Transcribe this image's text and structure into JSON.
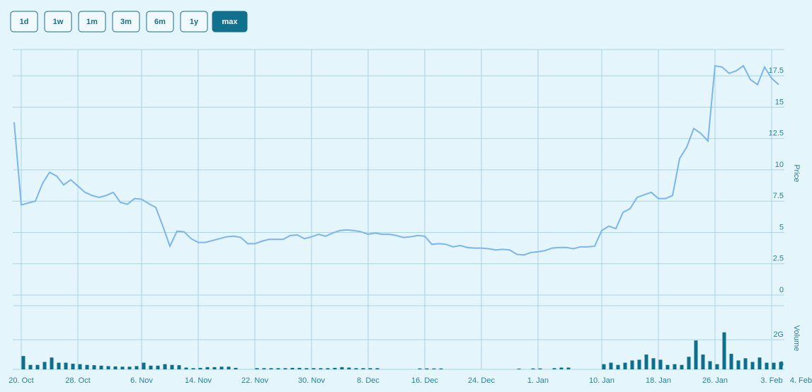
{
  "range_selector": {
    "buttons": [
      "1d",
      "1w",
      "1m",
      "3m",
      "6m",
      "1y",
      "max"
    ],
    "selected": 6
  },
  "chart_data": {
    "type": "line",
    "ylabel": "Price",
    "y2label": "Volume",
    "categories": [
      null,
      "20. Oct",
      null,
      null,
      null,
      null,
      null,
      null,
      null,
      "28. Oct",
      null,
      null,
      null,
      null,
      null,
      null,
      null,
      null,
      "6. Nov",
      null,
      null,
      null,
      null,
      null,
      null,
      null,
      "14. Nov",
      null,
      null,
      null,
      null,
      null,
      null,
      null,
      "22. Nov",
      null,
      null,
      null,
      null,
      null,
      null,
      null,
      "30. Nov",
      null,
      null,
      null,
      null,
      null,
      null,
      null,
      "8. Dec",
      null,
      null,
      null,
      null,
      null,
      null,
      null,
      "16. Dec",
      null,
      null,
      null,
      null,
      null,
      null,
      null,
      "24. Dec",
      null,
      null,
      null,
      null,
      null,
      null,
      null,
      "1. Jan",
      null,
      null,
      null,
      null,
      null,
      null,
      null,
      null,
      "10. Jan",
      null,
      null,
      null,
      null,
      null,
      null,
      null,
      "18. Jan",
      null,
      null,
      null,
      null,
      null,
      null,
      null,
      "26. Jan",
      null,
      null,
      null,
      null,
      null,
      null,
      null,
      "3. Feb",
      "4. Feb"
    ],
    "series": [
      {
        "type": "line",
        "color": "#7cb5ec",
        "values": [
          13.8,
          7.2,
          7.35,
          7.5,
          8.9,
          9.8,
          9.5,
          8.8,
          9.2,
          8.7,
          8.2,
          7.95,
          7.8,
          7.95,
          8.2,
          7.4,
          7.25,
          7.7,
          7.65,
          7.3,
          7.0,
          5.5,
          3.9,
          5.1,
          5.05,
          4.5,
          4.2,
          4.2,
          4.35,
          4.5,
          4.65,
          4.7,
          4.6,
          4.1,
          4.1,
          4.3,
          4.45,
          4.45,
          4.45,
          4.75,
          4.8,
          4.5,
          4.65,
          4.85,
          4.7,
          4.95,
          5.15,
          5.2,
          5.15,
          5.05,
          4.85,
          4.95,
          4.85,
          4.85,
          4.75,
          4.6,
          4.65,
          4.75,
          4.7,
          4.05,
          4.1,
          4.05,
          3.85,
          3.95,
          3.8,
          3.75,
          3.75,
          3.7,
          3.6,
          3.65,
          3.6,
          3.25,
          3.2,
          3.4,
          3.45,
          3.55,
          3.75,
          3.8,
          3.8,
          3.7,
          3.85,
          3.85,
          3.9,
          5.15,
          5.5,
          5.3,
          6.6,
          6.9,
          7.8,
          8.0,
          8.2,
          7.7,
          7.7,
          7.95,
          10.9,
          11.8,
          13.3,
          12.9,
          12.3,
          18.3,
          18.2,
          17.7,
          17.9,
          18.3,
          17.2,
          16.8,
          18.2,
          17.3,
          16.8
        ]
      },
      {
        "type": "bar",
        "axis": "y2",
        "color": "#0f6e8c",
        "values": [
          0,
          900000000.0,
          300000000.0,
          300000000.0,
          500000000.0,
          800000000.0,
          450000000.0,
          450000000.0,
          380000000.0,
          350000000.0,
          300000000.0,
          280000000.0,
          250000000.0,
          220000000.0,
          200000000.0,
          180000000.0,
          180000000.0,
          220000000.0,
          450000000.0,
          250000000.0,
          250000000.0,
          350000000.0,
          300000000.0,
          280000000.0,
          120000000.0,
          80000000.0,
          100000000.0,
          150000000.0,
          150000000.0,
          180000000.0,
          180000000.0,
          100000000.0,
          0,
          0,
          80000000.0,
          80000000.0,
          80000000.0,
          80000000.0,
          80000000.0,
          100000000.0,
          100000000.0,
          80000000.0,
          80000000.0,
          80000000.0,
          80000000.0,
          100000000.0,
          150000000.0,
          120000000.0,
          80000000.0,
          80000000.0,
          80000000.0,
          80000000.0,
          0,
          0,
          0,
          0,
          0,
          60000000.0,
          60000000.0,
          60000000.0,
          60000000.0,
          0,
          0,
          0,
          0,
          0,
          0,
          0,
          0,
          0,
          0,
          50000000.0,
          0,
          60000000.0,
          60000000.0,
          0,
          80000000.0,
          120000000.0,
          120000000.0,
          0,
          0,
          0,
          0,
          350000000.0,
          450000000.0,
          300000000.0,
          450000000.0,
          600000000.0,
          650000000.0,
          1000000000.0,
          750000000.0,
          650000000.0,
          300000000.0,
          350000000.0,
          300000000.0,
          850000000.0,
          1950000000.0,
          1000000000.0,
          550000000.0,
          350000000.0,
          2500000000.0,
          1050000000.0,
          600000000.0,
          750000000.0,
          500000000.0,
          800000000.0,
          450000000.0,
          450000000.0,
          500000000.0
        ]
      }
    ],
    "ylim": [
      0,
      19.6
    ],
    "yticks": [
      0,
      2.5,
      5,
      7.5,
      10,
      12.5,
      15,
      17.5
    ],
    "y2lim": [
      0,
      4300000000.0
    ],
    "y2ticks": [
      0,
      {
        "value": 2000000000.0,
        "label": "2G"
      }
    ],
    "grid": true
  }
}
